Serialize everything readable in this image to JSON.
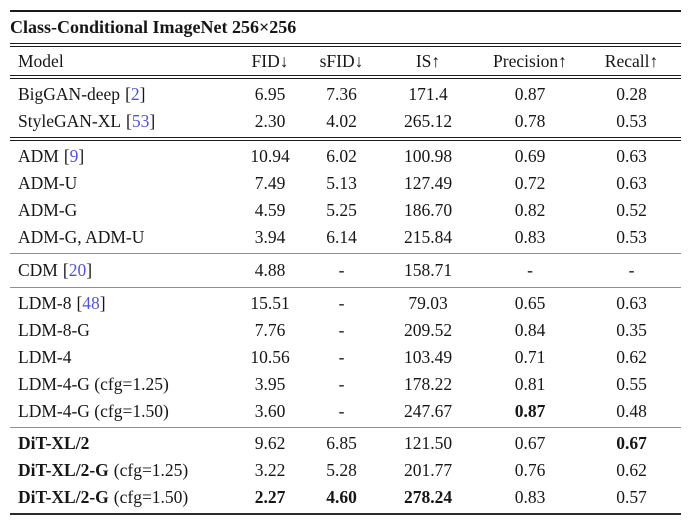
{
  "table": {
    "title": "Class-Conditional ImageNet 256×256",
    "colors": {
      "citation_number": "#5353d1",
      "text": "#161616",
      "thin_rule": "#909090"
    },
    "columns": {
      "model": "Model",
      "fid": "FID↓",
      "sfid": "sFID↓",
      "is": "IS↑",
      "precision": "Precision↑",
      "recall": "Recall↑"
    },
    "groups": [
      {
        "rows": [
          {
            "model": "BigGAN-deep",
            "cite_o": "[",
            "cite_n": "2",
            "cite_c": "]",
            "fid": "6.95",
            "sfid": "7.36",
            "is": "171.4",
            "precision": "0.87",
            "recall": "0.28"
          },
          {
            "model": "StyleGAN-XL",
            "cite_o": "[",
            "cite_n": "53",
            "cite_c": "]",
            "fid": "2.30",
            "sfid": "4.02",
            "is": "265.12",
            "precision": "0.78",
            "recall": "0.53"
          }
        ]
      },
      {
        "rows": [
          {
            "model": "ADM",
            "cite_o": "[",
            "cite_n": "9",
            "cite_c": "]",
            "fid": "10.94",
            "sfid": "6.02",
            "is": "100.98",
            "precision": "0.69",
            "recall": "0.63"
          },
          {
            "model": "ADM-U",
            "fid": "7.49",
            "sfid": "5.13",
            "is": "127.49",
            "precision": "0.72",
            "recall": "0.63"
          },
          {
            "model": "ADM-G",
            "fid": "4.59",
            "sfid": "5.25",
            "is": "186.70",
            "precision": "0.82",
            "recall": "0.52"
          },
          {
            "model": "ADM-G, ADM-U",
            "fid": "3.94",
            "sfid": "6.14",
            "is": "215.84",
            "precision": "0.83",
            "recall": "0.53"
          }
        ]
      },
      {
        "rows": [
          {
            "model": "CDM",
            "cite_o": "[",
            "cite_n": "20",
            "cite_c": "]",
            "fid": "4.88",
            "sfid": "-",
            "is": "158.71",
            "precision": "-",
            "recall": "-"
          }
        ]
      },
      {
        "rows": [
          {
            "model": "LDM-8",
            "cite_o": "[",
            "cite_n": "48",
            "cite_c": "]",
            "fid": "15.51",
            "sfid": "-",
            "is": "79.03",
            "precision": "0.65",
            "recall": "0.63"
          },
          {
            "model": "LDM-8-G",
            "fid": "7.76",
            "sfid": "-",
            "is": "209.52",
            "precision": "0.84",
            "recall": "0.35"
          },
          {
            "model": "LDM-4",
            "fid": "10.56",
            "sfid": "-",
            "is": "103.49",
            "precision": "0.71",
            "recall": "0.62"
          },
          {
            "model": "LDM-4-G (cfg=1.25)",
            "fid": "3.95",
            "sfid": "-",
            "is": "178.22",
            "precision": "0.81",
            "recall": "0.55"
          },
          {
            "model": "LDM-4-G (cfg=1.50)",
            "fid": "3.60",
            "sfid": "-",
            "is": "247.67",
            "precision": "0.87",
            "recall": "0.48"
          }
        ]
      },
      {
        "rows": [
          {
            "model": "DiT-XL/2",
            "fid": "9.62",
            "sfid": "6.85",
            "is": "121.50",
            "precision": "0.67",
            "recall": "0.67"
          },
          {
            "model": "DiT-XL/2-G",
            "suffix": "(cfg=1.25)",
            "fid": "3.22",
            "sfid": "5.28",
            "is": "201.77",
            "precision": "0.76",
            "recall": "0.62"
          },
          {
            "model": "DiT-XL/2-G",
            "suffix": "(cfg=1.50)",
            "fid": "2.27",
            "sfid": "4.60",
            "is": "278.24",
            "precision": "0.83",
            "recall": "0.57"
          }
        ]
      }
    ]
  }
}
